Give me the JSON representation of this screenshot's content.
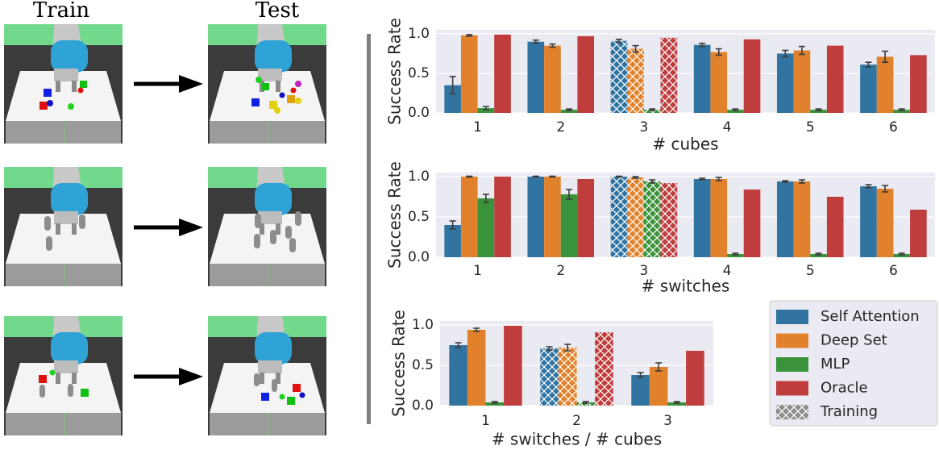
{
  "panels": {
    "train_label": "Train",
    "test_label": "Test"
  },
  "legend": {
    "training_label": "Training"
  },
  "chart_data": [
    {
      "type": "bar",
      "xlabel": "# cubes",
      "ylabel": "Success Rate",
      "categories": [
        "1",
        "2",
        "3",
        "4",
        "5",
        "6"
      ],
      "ylim": [
        0,
        1.05
      ],
      "yticks": [
        {
          "value": 0,
          "label": "0.0"
        },
        {
          "value": 0.5,
          "label": "0.5"
        },
        {
          "value": 1,
          "label": "1.0"
        }
      ],
      "grid": true,
      "hatched_categories": [
        2
      ],
      "series": [
        {
          "name": "Self Attention",
          "color": "#3274a1",
          "values": [
            0.35,
            0.9,
            0.91,
            0.86,
            0.75,
            0.61
          ],
          "errors": [
            0.11,
            0.02,
            0.02,
            0.02,
            0.04,
            0.03
          ]
        },
        {
          "name": "Deep Set",
          "color": "#e1812c",
          "values": [
            0.98,
            0.85,
            0.81,
            0.77,
            0.79,
            0.71
          ],
          "errors": [
            0.01,
            0.02,
            0.04,
            0.04,
            0.05,
            0.07
          ]
        },
        {
          "name": "MLP",
          "color": "#3a923a",
          "values": [
            0.06,
            0.04,
            0.04,
            0.04,
            0.04,
            0.04
          ],
          "errors": [
            0.02,
            0.01,
            0.01,
            0.01,
            0.01,
            0.01
          ]
        },
        {
          "name": "Oracle",
          "color": "#c03d3e",
          "values": [
            0.99,
            0.97,
            0.95,
            0.93,
            0.85,
            0.73
          ]
        }
      ]
    },
    {
      "type": "bar",
      "xlabel": "# switches",
      "ylabel": "Success Rate",
      "categories": [
        "1",
        "2",
        "3",
        "4",
        "5",
        "6"
      ],
      "ylim": [
        0,
        1.05
      ],
      "yticks": [
        {
          "value": 0,
          "label": "0.0"
        },
        {
          "value": 0.5,
          "label": "0.5"
        },
        {
          "value": 1,
          "label": "1.0"
        }
      ],
      "grid": true,
      "hatched_categories": [
        2
      ],
      "series": [
        {
          "name": "Self Attention",
          "color": "#3274a1",
          "values": [
            0.4,
            1.0,
            1.0,
            0.97,
            0.94,
            0.88
          ],
          "errors": [
            0.05,
            0.005,
            0.005,
            0.01,
            0.01,
            0.02
          ]
        },
        {
          "name": "Deep Set",
          "color": "#e1812c",
          "values": [
            1.0,
            1.0,
            0.99,
            0.97,
            0.94,
            0.85
          ],
          "errors": [
            0.005,
            0.005,
            0.01,
            0.02,
            0.02,
            0.04
          ]
        },
        {
          "name": "MLP",
          "color": "#3a923a",
          "values": [
            0.73,
            0.78,
            0.94,
            0.04,
            0.04,
            0.04
          ],
          "errors": [
            0.05,
            0.06,
            0.02,
            0.01,
            0.01,
            0.01
          ]
        },
        {
          "name": "Oracle",
          "color": "#c03d3e",
          "values": [
            1.0,
            0.97,
            0.92,
            0.84,
            0.75,
            0.59
          ]
        }
      ]
    },
    {
      "type": "bar",
      "xlabel": "# switches / # cubes",
      "ylabel": "Success Rate",
      "categories": [
        "1",
        "2",
        "3"
      ],
      "ylim": [
        0,
        1.05
      ],
      "yticks": [
        {
          "value": 0,
          "label": "0.0"
        },
        {
          "value": 0.5,
          "label": "0.5"
        },
        {
          "value": 1,
          "label": "1.0"
        }
      ],
      "grid": true,
      "hatched_categories": [
        1
      ],
      "series": [
        {
          "name": "Self Attention",
          "color": "#3274a1",
          "values": [
            0.75,
            0.71,
            0.38
          ],
          "errors": [
            0.03,
            0.02,
            0.03
          ]
        },
        {
          "name": "Deep Set",
          "color": "#e1812c",
          "values": [
            0.94,
            0.72,
            0.48
          ],
          "errors": [
            0.02,
            0.04,
            0.05
          ]
        },
        {
          "name": "MLP",
          "color": "#3a923a",
          "values": [
            0.04,
            0.04,
            0.04
          ],
          "errors": [
            0.01,
            0.01,
            0.01
          ]
        },
        {
          "name": "Oracle",
          "color": "#c03d3e",
          "values": [
            0.99,
            0.91,
            0.68
          ]
        }
      ]
    }
  ]
}
